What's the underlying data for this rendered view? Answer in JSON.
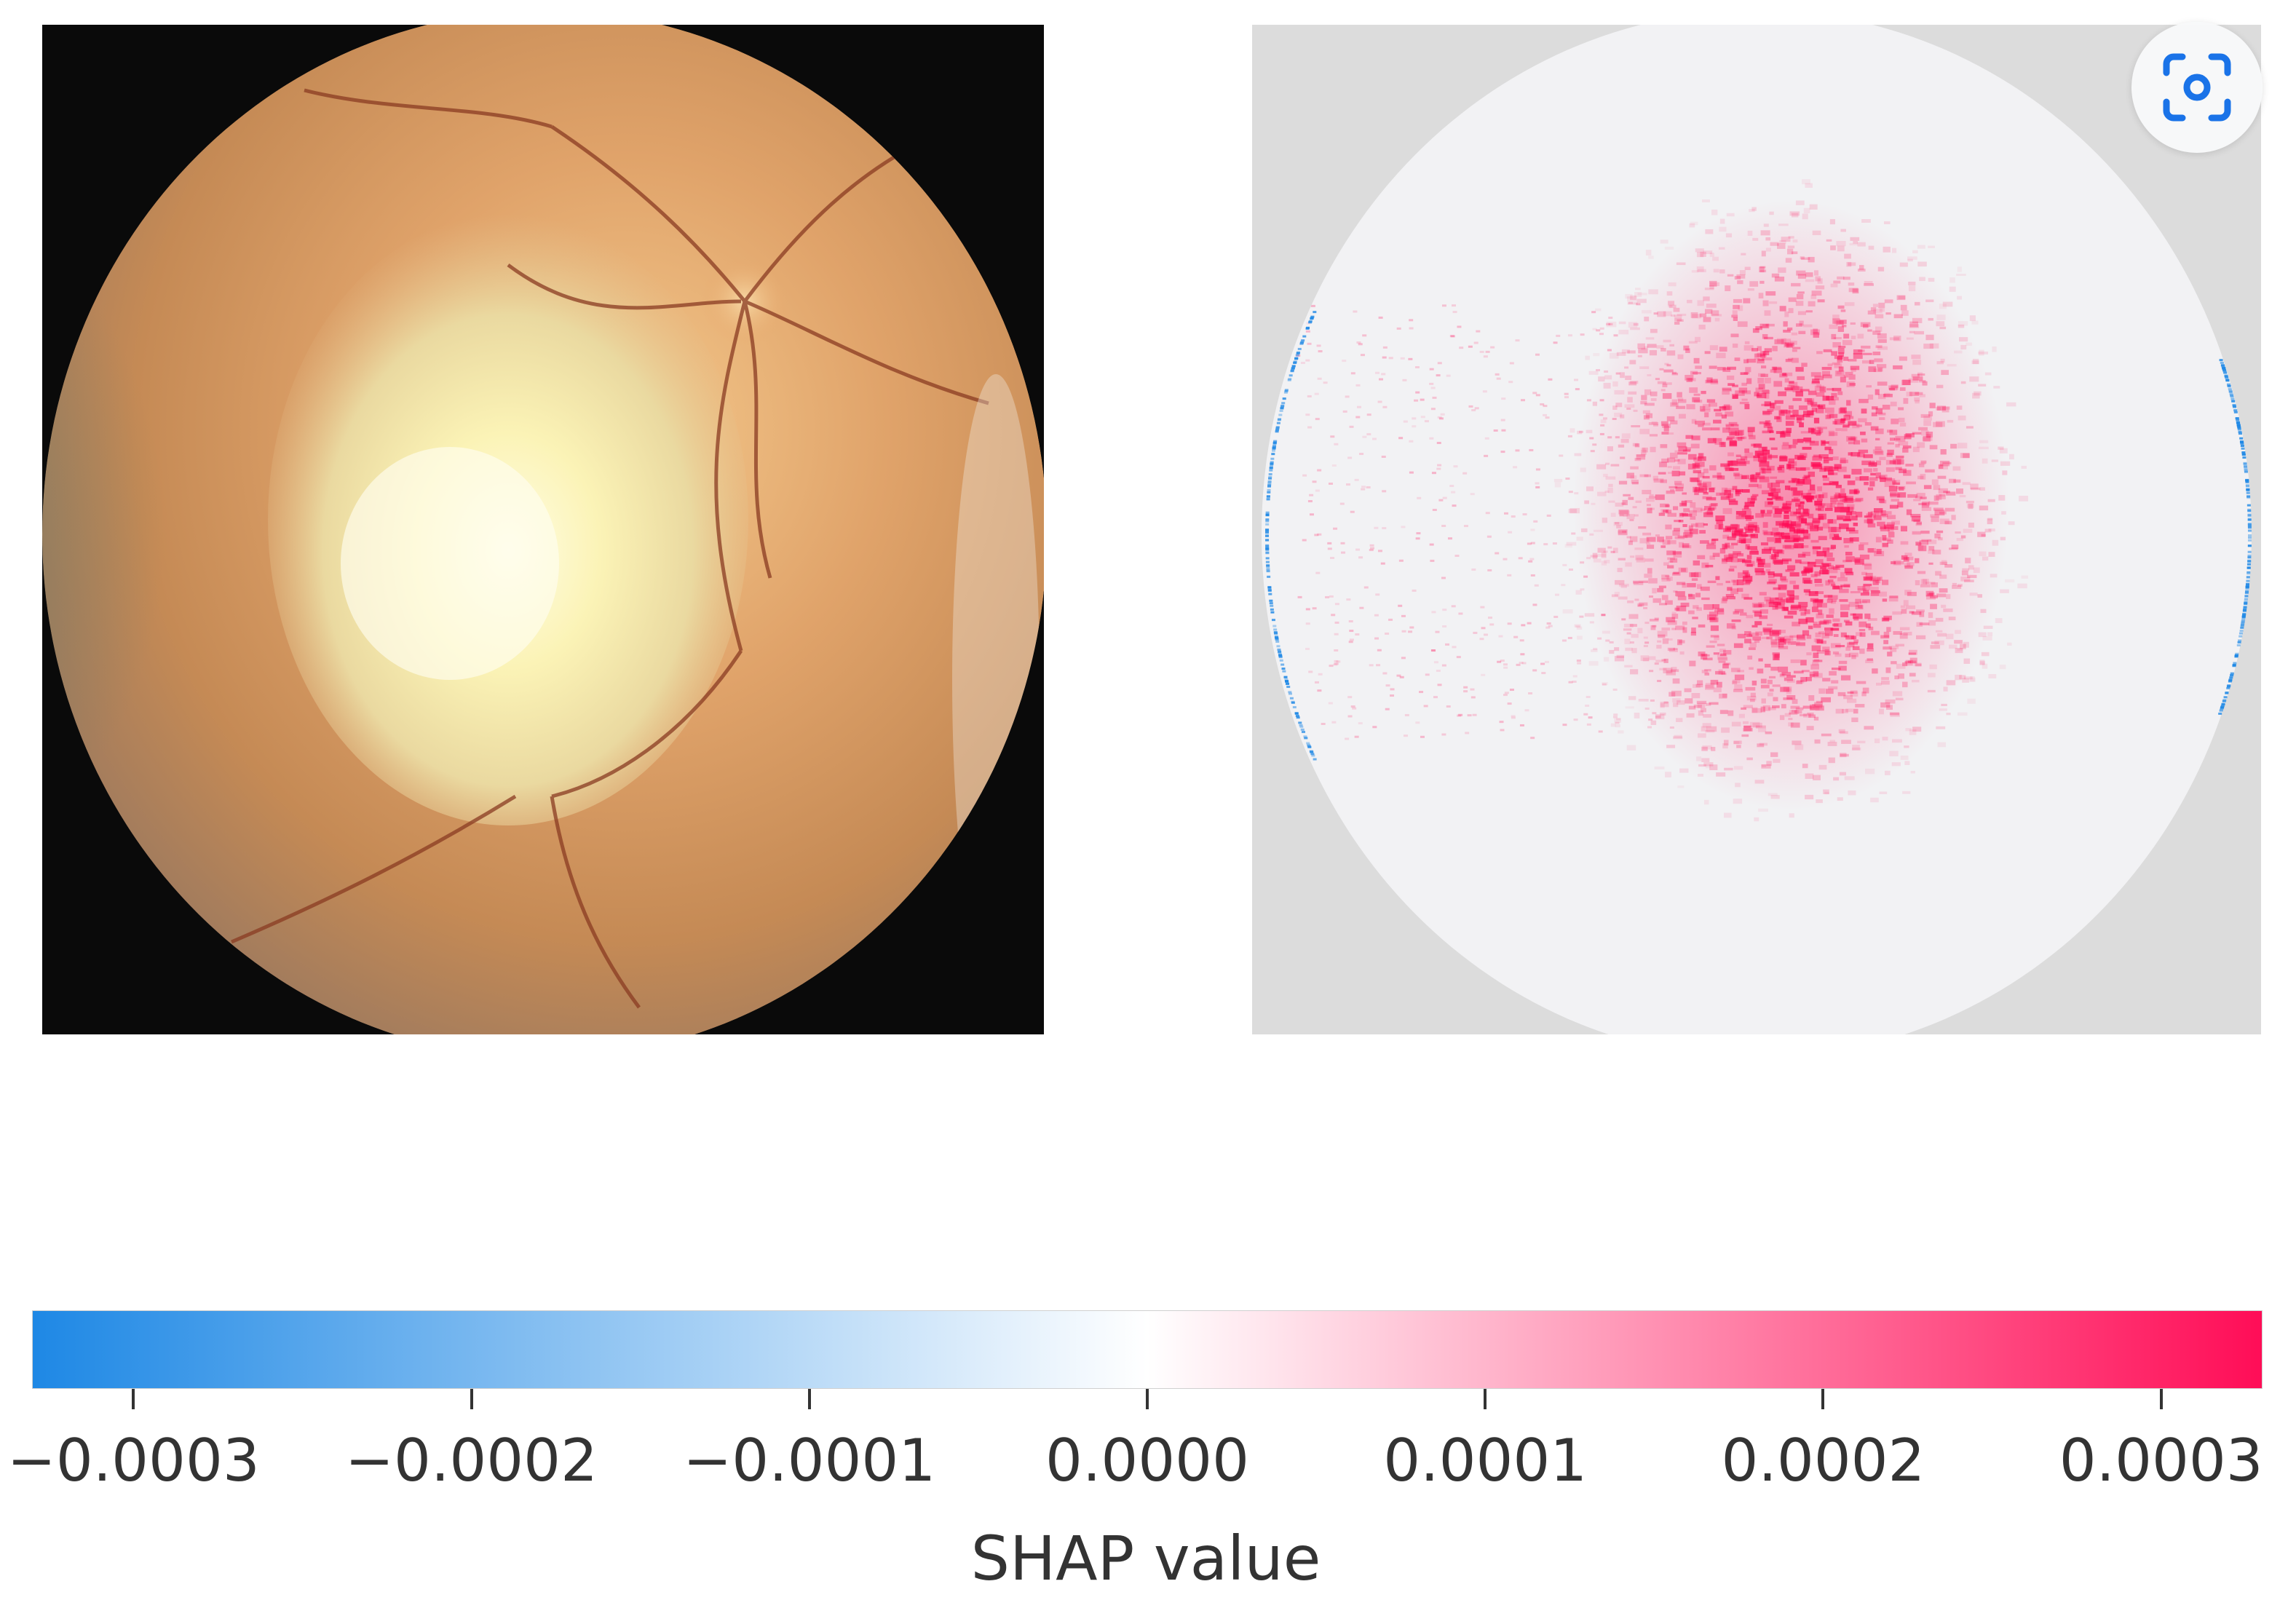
{
  "chart_data": {
    "type": "heatmap",
    "panels": [
      {
        "name": "fundus-photo",
        "kind": "image"
      },
      {
        "name": "shap-map",
        "kind": "heatmap"
      }
    ],
    "colorbar": {
      "label": "SHAP value",
      "range": [
        -0.00033,
        0.00033
      ],
      "ticks": [
        -0.0003,
        -0.0002,
        -0.0001,
        0.0,
        0.0001,
        0.0002,
        0.0003
      ],
      "tick_labels": [
        "−0.0003",
        "−0.0002",
        "−0.0001",
        "0.0000",
        "0.0001",
        "0.0002",
        "0.0003"
      ],
      "colors": {
        "negative": "#1e88e5",
        "zero": "#ffffff",
        "positive": "#ff0d57"
      }
    }
  },
  "overlay": {
    "icon": "lens-search-icon",
    "accent": "#1a73e8"
  }
}
